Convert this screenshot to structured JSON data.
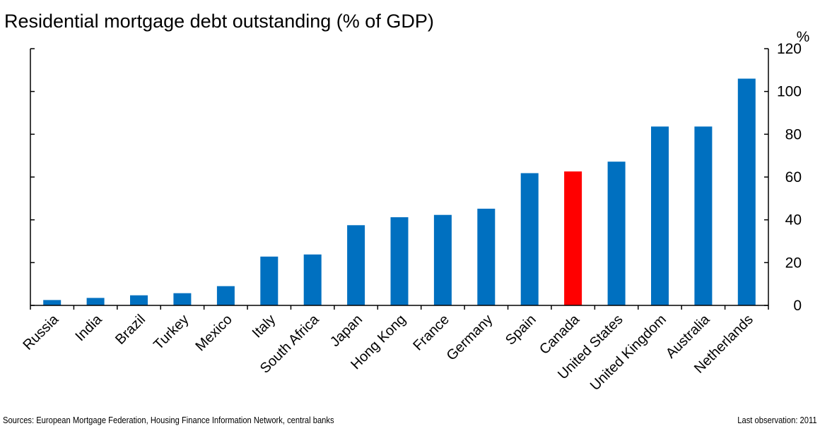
{
  "chart_data": {
    "type": "bar",
    "title": "Residential mortgage debt outstanding (% of GDP)",
    "unit_label": "%",
    "categories": [
      "Russia",
      "India",
      "Brazil",
      "Turkey",
      "Mexico",
      "Italy",
      "South Africa",
      "Japan",
      "Hong Kong",
      "France",
      "Germany",
      "Spain",
      "Canada",
      "United States",
      "United Kingdom",
      "Australia",
      "Netherlands"
    ],
    "values": [
      2.5,
      3.5,
      4.7,
      5.7,
      9.0,
      22.8,
      23.8,
      37.5,
      41.2,
      42.3,
      45.2,
      61.8,
      62.6,
      67.2,
      83.6,
      83.6,
      106.0
    ],
    "highlight": "Canada",
    "ylim": [
      0,
      120
    ],
    "yticks": [
      0,
      20,
      40,
      60,
      80,
      100,
      120
    ],
    "y_axis_side": "right",
    "grid": false,
    "colors": {
      "default": "#0070c0",
      "highlight": "#ff0000"
    }
  },
  "footer": {
    "source": "Sources: European Mortgage Federation, Housing Finance Information Network, central banks",
    "last_observation": "Last observation: 2011"
  }
}
